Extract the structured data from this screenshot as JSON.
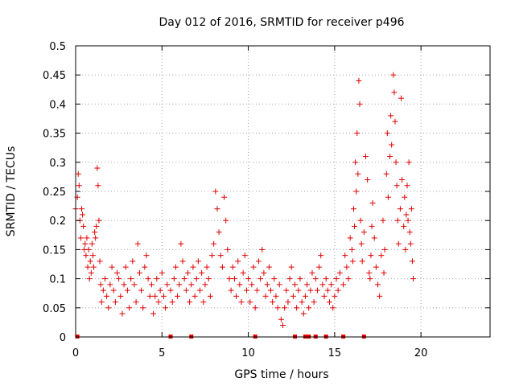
{
  "chart_data": {
    "type": "scatter",
    "title": "Day 012 of 2016, SRMTID for receiver p496",
    "xlabel": "GPS time / hours",
    "ylabel": "SRMTID / TECUs",
    "xlim": [
      0,
      24
    ],
    "ylim": [
      0,
      0.5
    ],
    "x_ticks": [
      {
        "value": 0,
        "label": "0"
      },
      {
        "value": 5,
        "label": "5"
      },
      {
        "value": 10,
        "label": "10"
      },
      {
        "value": 15,
        "label": "15"
      },
      {
        "value": 20,
        "label": "20"
      }
    ],
    "y_ticks": [
      {
        "value": 0,
        "label": "0"
      },
      {
        "value": 0.05,
        "label": "0.05"
      },
      {
        "value": 0.1,
        "label": "0.1"
      },
      {
        "value": 0.15,
        "label": "0.15"
      },
      {
        "value": 0.2,
        "label": "0.2"
      },
      {
        "value": 0.25,
        "label": "0.25"
      },
      {
        "value": 0.3,
        "label": "0.3"
      },
      {
        "value": 0.35,
        "label": "0.35"
      },
      {
        "value": 0.4,
        "label": "0.4"
      },
      {
        "value": 0.45,
        "label": "0.45"
      },
      {
        "value": 0.5,
        "label": "0.5"
      }
    ],
    "grid": true,
    "marker": "+",
    "color": "#e00000",
    "series": [
      {
        "name": "SRMTID",
        "points": [
          [
            0.0,
            0.22
          ],
          [
            0.1,
            0.24
          ],
          [
            0.15,
            0.28
          ],
          [
            0.2,
            0.26
          ],
          [
            0.25,
            0.2
          ],
          [
            0.3,
            0.17
          ],
          [
            0.35,
            0.22
          ],
          [
            0.4,
            0.21
          ],
          [
            0.45,
            0.19
          ],
          [
            0.5,
            0.15
          ],
          [
            0.55,
            0.16
          ],
          [
            0.6,
            0.14
          ],
          [
            0.65,
            0.17
          ],
          [
            0.7,
            0.12
          ],
          [
            0.75,
            0.15
          ],
          [
            0.8,
            0.1
          ],
          [
            0.85,
            0.13
          ],
          [
            0.9,
            0.11
          ],
          [
            0.95,
            0.16
          ],
          [
            1.0,
            0.14
          ],
          [
            1.05,
            0.12
          ],
          [
            1.1,
            0.18
          ],
          [
            1.15,
            0.17
          ],
          [
            1.2,
            0.19
          ],
          [
            1.25,
            0.29
          ],
          [
            1.3,
            0.26
          ],
          [
            1.35,
            0.2
          ],
          [
            1.4,
            0.13
          ],
          [
            1.45,
            0.09
          ],
          [
            1.5,
            0.06
          ],
          [
            1.6,
            0.08
          ],
          [
            1.7,
            0.1
          ],
          [
            1.8,
            0.07
          ],
          [
            1.9,
            0.05
          ],
          [
            2.0,
            0.09
          ],
          [
            2.1,
            0.12
          ],
          [
            2.2,
            0.08
          ],
          [
            2.3,
            0.06
          ],
          [
            2.4,
            0.11
          ],
          [
            2.5,
            0.1
          ],
          [
            2.6,
            0.07
          ],
          [
            2.7,
            0.04
          ],
          [
            2.8,
            0.09
          ],
          [
            2.9,
            0.12
          ],
          [
            3.0,
            0.08
          ],
          [
            3.1,
            0.05
          ],
          [
            3.2,
            0.1
          ],
          [
            3.3,
            0.13
          ],
          [
            3.4,
            0.09
          ],
          [
            3.5,
            0.06
          ],
          [
            3.6,
            0.16
          ],
          [
            3.7,
            0.11
          ],
          [
            3.8,
            0.08
          ],
          [
            3.9,
            0.05
          ],
          [
            4.0,
            0.12
          ],
          [
            4.1,
            0.14
          ],
          [
            4.2,
            0.1
          ],
          [
            4.3,
            0.07
          ],
          [
            4.4,
            0.09
          ],
          [
            4.5,
            0.04
          ],
          [
            4.6,
            0.07
          ],
          [
            4.7,
            0.1
          ],
          [
            4.8,
            0.06
          ],
          [
            4.9,
            0.08
          ],
          [
            5.0,
            0.11
          ],
          [
            5.1,
            0.07
          ],
          [
            5.2,
            0.05
          ],
          [
            5.3,
            0.09
          ],
          [
            5.5,
            0.08
          ],
          [
            5.6,
            0.06
          ],
          [
            5.7,
            0.1
          ],
          [
            5.8,
            0.12
          ],
          [
            5.9,
            0.07
          ],
          [
            6.0,
            0.09
          ],
          [
            6.1,
            0.16
          ],
          [
            6.2,
            0.13
          ],
          [
            6.3,
            0.1
          ],
          [
            6.4,
            0.08
          ],
          [
            6.5,
            0.11
          ],
          [
            6.6,
            0.06
          ],
          [
            6.7,
            0.09
          ],
          [
            6.8,
            0.12
          ],
          [
            6.9,
            0.07
          ],
          [
            7.0,
            0.1
          ],
          [
            7.1,
            0.13
          ],
          [
            7.2,
            0.08
          ],
          [
            7.3,
            0.11
          ],
          [
            7.4,
            0.06
          ],
          [
            7.5,
            0.09
          ],
          [
            7.6,
            0.12
          ],
          [
            7.7,
            0.1
          ],
          [
            7.8,
            0.07
          ],
          [
            7.9,
            0.14
          ],
          [
            8.0,
            0.16
          ],
          [
            8.1,
            0.25
          ],
          [
            8.2,
            0.22
          ],
          [
            8.3,
            0.18
          ],
          [
            8.4,
            0.14
          ],
          [
            8.5,
            0.12
          ],
          [
            8.6,
            0.24
          ],
          [
            8.7,
            0.2
          ],
          [
            8.8,
            0.15
          ],
          [
            8.9,
            0.1
          ],
          [
            9.0,
            0.08
          ],
          [
            9.1,
            0.12
          ],
          [
            9.2,
            0.1
          ],
          [
            9.3,
            0.07
          ],
          [
            9.4,
            0.13
          ],
          [
            9.5,
            0.09
          ],
          [
            9.6,
            0.06
          ],
          [
            9.7,
            0.11
          ],
          [
            9.8,
            0.14
          ],
          [
            9.9,
            0.08
          ],
          [
            10.0,
            0.1
          ],
          [
            10.1,
            0.06
          ],
          [
            10.2,
            0.09
          ],
          [
            10.3,
            0.12
          ],
          [
            10.4,
            0.05
          ],
          [
            10.5,
            0.08
          ],
          [
            10.6,
            0.13
          ],
          [
            10.7,
            0.1
          ],
          [
            10.8,
            0.15
          ],
          [
            10.9,
            0.11
          ],
          [
            11.0,
            0.07
          ],
          [
            11.1,
            0.09
          ],
          [
            11.2,
            0.12
          ],
          [
            11.3,
            0.08
          ],
          [
            11.4,
            0.06
          ],
          [
            11.5,
            0.1
          ],
          [
            11.6,
            0.07
          ],
          [
            11.7,
            0.05
          ],
          [
            11.8,
            0.09
          ],
          [
            11.9,
            0.03
          ],
          [
            12.0,
            0.02
          ],
          [
            12.1,
            0.05
          ],
          [
            12.2,
            0.08
          ],
          [
            12.3,
            0.06
          ],
          [
            12.4,
            0.1
          ],
          [
            12.5,
            0.12
          ],
          [
            12.6,
            0.07
          ],
          [
            12.7,
            0.09
          ],
          [
            12.8,
            0.05
          ],
          [
            12.9,
            0.08
          ],
          [
            13.0,
            0.1
          ],
          [
            13.1,
            0.06
          ],
          [
            13.2,
            0.04
          ],
          [
            13.3,
            0.07
          ],
          [
            13.4,
            0.09
          ],
          [
            13.5,
            0.05
          ],
          [
            13.6,
            0.08
          ],
          [
            13.7,
            0.11
          ],
          [
            13.8,
            0.06
          ],
          [
            13.9,
            0.1
          ],
          [
            14.0,
            0.08
          ],
          [
            14.1,
            0.12
          ],
          [
            14.2,
            0.14
          ],
          [
            14.3,
            0.09
          ],
          [
            14.4,
            0.07
          ],
          [
            14.5,
            0.1
          ],
          [
            14.6,
            0.08
          ],
          [
            14.7,
            0.06
          ],
          [
            14.8,
            0.09
          ],
          [
            14.9,
            0.05
          ],
          [
            15.0,
            0.07
          ],
          [
            15.1,
            0.1
          ],
          [
            15.2,
            0.08
          ],
          [
            15.3,
            0.11
          ],
          [
            15.5,
            0.09
          ],
          [
            15.6,
            0.14
          ],
          [
            15.7,
            0.12
          ],
          [
            15.8,
            0.1
          ],
          [
            15.9,
            0.17
          ],
          [
            16.0,
            0.15
          ],
          [
            16.05,
            0.13
          ],
          [
            16.1,
            0.22
          ],
          [
            16.15,
            0.19
          ],
          [
            16.2,
            0.3
          ],
          [
            16.25,
            0.25
          ],
          [
            16.3,
            0.35
          ],
          [
            16.35,
            0.28
          ],
          [
            16.4,
            0.44
          ],
          [
            16.45,
            0.4
          ],
          [
            16.5,
            0.2
          ],
          [
            16.55,
            0.16
          ],
          [
            16.6,
            0.13
          ],
          [
            16.7,
            0.18
          ],
          [
            16.8,
            0.31
          ],
          [
            16.9,
            0.27
          ],
          [
            17.0,
            0.11
          ],
          [
            17.05,
            0.1
          ],
          [
            17.1,
            0.14
          ],
          [
            17.15,
            0.19
          ],
          [
            17.2,
            0.23
          ],
          [
            17.3,
            0.17
          ],
          [
            17.4,
            0.12
          ],
          [
            17.5,
            0.09
          ],
          [
            17.6,
            0.07
          ],
          [
            17.7,
            0.14
          ],
          [
            17.8,
            0.2
          ],
          [
            17.85,
            0.11
          ],
          [
            17.9,
            0.15
          ],
          [
            18.0,
            0.28
          ],
          [
            18.05,
            0.35
          ],
          [
            18.1,
            0.24
          ],
          [
            18.2,
            0.31
          ],
          [
            18.25,
            0.38
          ],
          [
            18.3,
            0.33
          ],
          [
            18.4,
            0.45
          ],
          [
            18.45,
            0.42
          ],
          [
            18.5,
            0.37
          ],
          [
            18.55,
            0.3
          ],
          [
            18.6,
            0.26
          ],
          [
            18.65,
            0.2
          ],
          [
            18.7,
            0.16
          ],
          [
            18.8,
            0.22
          ],
          [
            18.85,
            0.41
          ],
          [
            18.9,
            0.27
          ],
          [
            19.0,
            0.19
          ],
          [
            19.05,
            0.24
          ],
          [
            19.1,
            0.15
          ],
          [
            19.15,
            0.21
          ],
          [
            19.2,
            0.26
          ],
          [
            19.25,
            0.2
          ],
          [
            19.3,
            0.3
          ],
          [
            19.35,
            0.18
          ],
          [
            19.4,
            0.16
          ],
          [
            19.45,
            0.22
          ],
          [
            19.5,
            0.13
          ],
          [
            19.55,
            0.1
          ]
        ]
      }
    ],
    "zero_markers": [
      0.1,
      5.5,
      6.7,
      10.4,
      12.7,
      13.3,
      13.4,
      13.5,
      13.9,
      14.5,
      15.5,
      16.7
    ]
  }
}
